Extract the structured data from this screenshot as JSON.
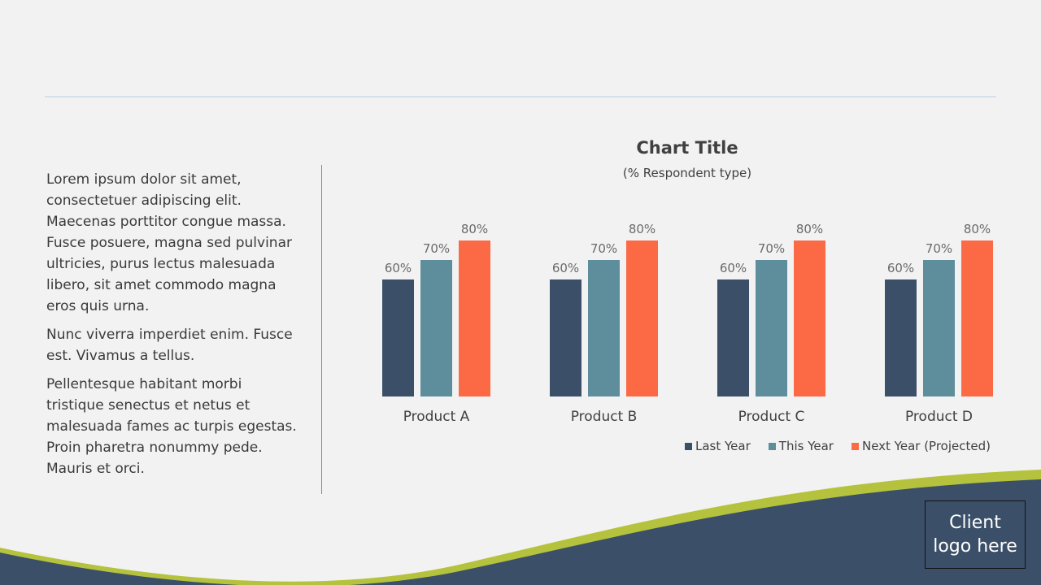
{
  "body_paragraphs": [
    "Lorem ipsum dolor sit amet, consectetuer adipiscing elit. Maecenas porttitor congue massa. Fusce posuere, magna sed pulvinar ultricies, purus lectus malesuada libero, sit amet commodo magna eros quis urna.",
    "Nunc viverra imperdiet enim. Fusce est. Vivamus a tellus.",
    "Pellentesque habitant morbi tristique senectus et netus et malesuada fames ac turpis egestas. Proin pharetra nonummy pede. Mauris et orci."
  ],
  "logo": {
    "line1": "Client",
    "line2": "logo here"
  },
  "colors": {
    "background": "#f2f2f2",
    "navy": "#3b5068",
    "green_accent": "#b5c23d",
    "last_year": "#3b5068",
    "this_year": "#5e8e9c",
    "next_year": "#fc6a45"
  },
  "chart_data": {
    "type": "bar",
    "title": "Chart Title",
    "subtitle": "(% Respondent type)",
    "categories": [
      "Product A",
      "Product B",
      "Product C",
      "Product D"
    ],
    "series": [
      {
        "name": "Last Year",
        "values": [
          60,
          60,
          60,
          60
        ],
        "labels": [
          "60%",
          "60%",
          "60%",
          "60%"
        ],
        "color": "#3b5068"
      },
      {
        "name": "This Year",
        "values": [
          70,
          70,
          70,
          70
        ],
        "labels": [
          "70%",
          "70%",
          "70%",
          "70%"
        ],
        "color": "#5e8e9c"
      },
      {
        "name": "Next Year (Projected)",
        "values": [
          80,
          80,
          80,
          80
        ],
        "labels": [
          "80%",
          "80%",
          "80%",
          "80%"
        ],
        "color": "#fc6a45"
      }
    ],
    "ylim": [
      0,
      100
    ],
    "unit": "%",
    "grid": false,
    "legend": "bottom-right"
  }
}
